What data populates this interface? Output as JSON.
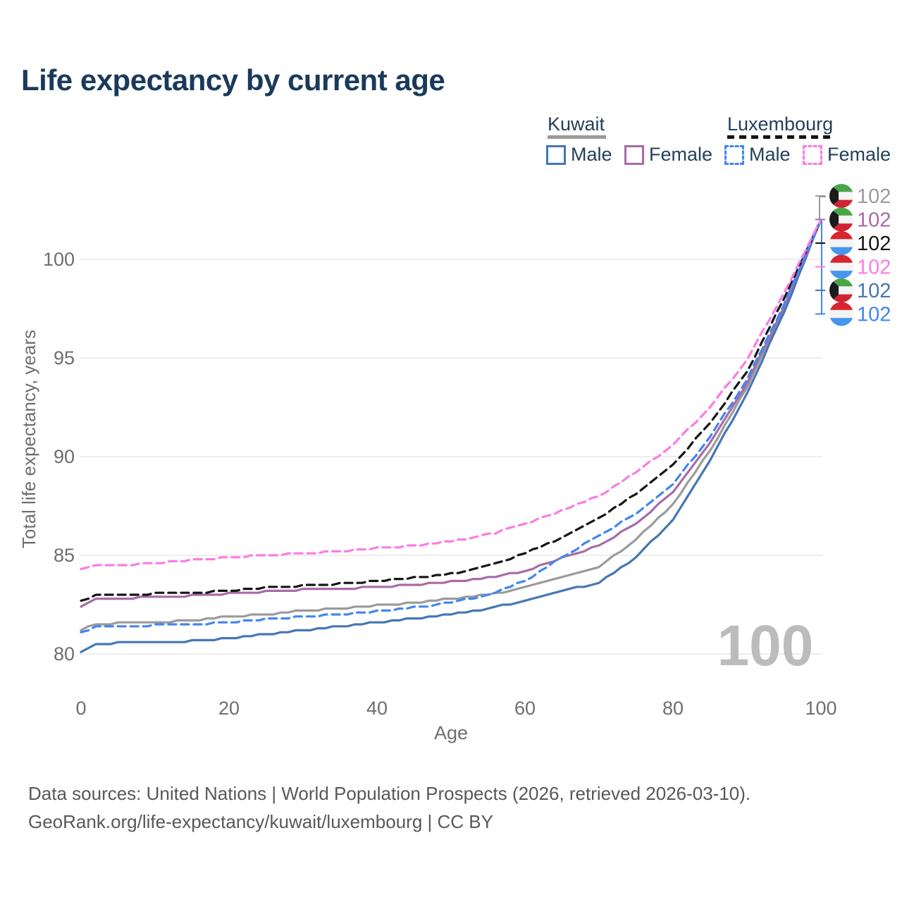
{
  "title": "Life expectancy by current age",
  "legend": {
    "groups": [
      {
        "name": "Kuwait",
        "underline_style": "solid",
        "underline_color": "#9a9a9a",
        "items": [
          {
            "label": "Male",
            "series": "kuwait-male",
            "color": "#4676b5",
            "dashed": false
          },
          {
            "label": "Female",
            "series": "kuwait-female",
            "color": "#a86ba8",
            "dashed": false
          }
        ]
      },
      {
        "name": "Luxembourg",
        "underline_style": "dashed",
        "underline_color": "#141414",
        "items": [
          {
            "label": "Male",
            "series": "luxembourg-male",
            "color": "#4186f2",
            "dashed": true
          },
          {
            "label": "Female",
            "series": "luxembourg-female",
            "color": "#fb7ce4",
            "dashed": true
          }
        ]
      }
    ]
  },
  "chart_data": {
    "type": "line",
    "title": "Life expectancy by current age",
    "xlabel": "Age",
    "ylabel": "Total life expectancy, years",
    "x_ticks": [
      0,
      20,
      40,
      60,
      80,
      100
    ],
    "y_ticks": [
      80,
      85,
      90,
      95,
      100
    ],
    "xlim": [
      0,
      100
    ],
    "ylim": [
      78.5,
      104
    ],
    "grid": "horizontal",
    "legend_position": "top-right",
    "x": [
      0,
      2,
      5,
      10,
      15,
      20,
      25,
      30,
      35,
      40,
      45,
      50,
      55,
      60,
      65,
      70,
      75,
      80,
      85,
      90,
      95,
      100
    ],
    "series": [
      {
        "id": "kuwait-total",
        "name": "Kuwait (both sexes)",
        "color": "#9b9b9b",
        "dashed": false,
        "values": [
          81.2,
          81.5,
          81.55,
          81.6,
          81.7,
          81.9,
          82.0,
          82.2,
          82.3,
          82.45,
          82.6,
          82.8,
          83.0,
          83.35,
          83.9,
          84.4,
          85.8,
          87.6,
          90.3,
          93.5,
          97.5,
          102
        ]
      },
      {
        "id": "kuwait-male",
        "name": "Kuwait male",
        "color": "#4676b5",
        "dashed": false,
        "values": [
          80.1,
          80.5,
          80.55,
          80.6,
          80.65,
          80.8,
          81.0,
          81.2,
          81.4,
          81.6,
          81.8,
          82.0,
          82.3,
          82.7,
          83.2,
          83.6,
          84.9,
          86.8,
          89.8,
          93.2,
          97.3,
          102
        ]
      },
      {
        "id": "kuwait-female",
        "name": "Kuwait female",
        "color": "#a86ba8",
        "dashed": false,
        "values": [
          82.4,
          82.8,
          82.82,
          82.88,
          82.95,
          83.05,
          83.15,
          83.25,
          83.3,
          83.4,
          83.5,
          83.65,
          83.85,
          84.2,
          84.85,
          85.5,
          86.6,
          88.2,
          90.7,
          93.7,
          97.6,
          102
        ]
      },
      {
        "id": "luxembourg-total",
        "name": "Luxembourg (both sexes)",
        "color": "#151515",
        "dashed": true,
        "values": [
          82.7,
          82.95,
          83.0,
          83.05,
          83.1,
          83.2,
          83.35,
          83.45,
          83.55,
          83.7,
          83.85,
          84.05,
          84.45,
          85.1,
          85.9,
          86.9,
          88.1,
          89.6,
          91.7,
          94.3,
          98.0,
          102
        ]
      },
      {
        "id": "luxembourg-male",
        "name": "Luxembourg male",
        "color": "#4186f2",
        "dashed": true,
        "values": [
          81.1,
          81.35,
          81.4,
          81.45,
          81.5,
          81.6,
          81.75,
          81.9,
          82.0,
          82.15,
          82.35,
          82.6,
          83.0,
          83.7,
          84.9,
          86.0,
          87.1,
          88.6,
          91.0,
          93.9,
          97.7,
          102
        ]
      },
      {
        "id": "luxembourg-female",
        "name": "Luxembourg female",
        "color": "#fb7ce4",
        "dashed": true,
        "values": [
          84.3,
          84.45,
          84.5,
          84.6,
          84.75,
          84.9,
          85.0,
          85.1,
          85.2,
          85.35,
          85.5,
          85.7,
          86.05,
          86.55,
          87.3,
          88.0,
          89.2,
          90.6,
          92.5,
          94.9,
          98.3,
          102
        ]
      }
    ],
    "end_labels": [
      {
        "series": "kuwait-total",
        "flag": "kuwait",
        "value": "102"
      },
      {
        "series": "kuwait-female",
        "flag": "kuwait",
        "value": "102"
      },
      {
        "series": "luxembourg-total",
        "flag": "luxembourg",
        "value": "102"
      },
      {
        "series": "luxembourg-female",
        "flag": "luxembourg",
        "value": "102"
      },
      {
        "series": "kuwait-male",
        "flag": "kuwait",
        "value": "102"
      },
      {
        "series": "luxembourg-male",
        "flag": "luxembourg",
        "value": "102"
      }
    ]
  },
  "watermark": "100",
  "footer": {
    "line1": "Data sources: United Nations | World Population Prospects (2026, retrieved 2026-03-10).",
    "line2": "GeoRank.org/life-expectancy/kuwait/luxembourg | CC BY"
  },
  "colors": {
    "title": "#1a3a5c",
    "legend_text": "#24405c",
    "axis_text": "#6e6e6e",
    "grid": "#e7e7e7",
    "watermark": "#bcbcbc",
    "footer": "#57585a",
    "flag_kuwait": {
      "green": "#4aa546",
      "white": "#f4f4f4",
      "red": "#cf2434",
      "black": "#1b1b1b"
    },
    "flag_luxembourg": {
      "red": "#d8252e",
      "white": "#f4f4f4",
      "blue": "#4596ef"
    }
  }
}
